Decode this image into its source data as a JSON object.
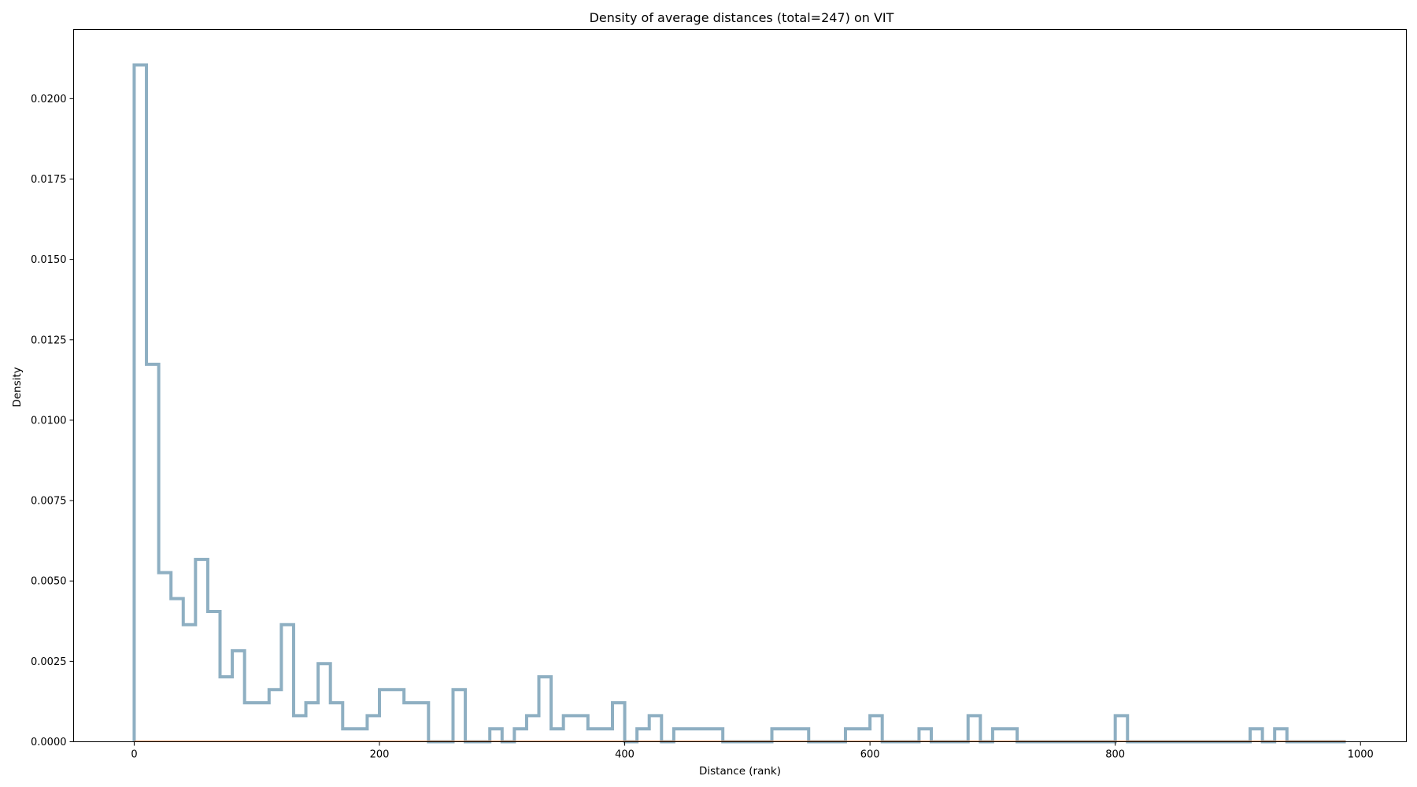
{
  "chart_data": {
    "type": "histogram-step",
    "title": "Density of average distances (total=247) on VIT",
    "xlabel": "Distance (rank)",
    "ylabel": "Density",
    "xlim": [
      -49.4,
      1037.4
    ],
    "ylim": [
      0,
      0.02215
    ],
    "xticks": [
      0,
      200,
      400,
      600,
      800,
      1000
    ],
    "xtick_labels": [
      "0",
      "200",
      "400",
      "600",
      "800",
      "1000"
    ],
    "yticks": [
      0,
      0.0025,
      0.005,
      0.0075,
      0.01,
      0.0125,
      0.015,
      0.0175,
      0.02
    ],
    "ytick_labels": [
      "0.0000",
      "0.0025",
      "0.0050",
      "0.0075",
      "0.0100",
      "0.0125",
      "0.0150",
      "0.0175",
      "0.0200"
    ],
    "grid": false,
    "series": [
      {
        "color": "#8eafc2",
        "bin_edges": [
          0,
          10,
          20,
          30,
          40,
          50,
          60,
          70,
          80,
          90,
          100,
          110,
          120,
          130,
          140,
          150,
          160,
          170,
          180,
          190,
          200,
          210,
          220,
          230,
          240,
          250,
          260,
          270,
          280,
          290,
          300,
          310,
          320,
          330,
          340,
          350,
          360,
          370,
          380,
          390,
          400,
          410,
          420,
          430,
          440,
          450,
          460,
          470,
          480,
          490,
          500,
          510,
          520,
          530,
          540,
          550,
          560,
          570,
          580,
          590,
          600,
          610,
          620,
          630,
          640,
          650,
          660,
          670,
          680,
          690,
          700,
          710,
          720,
          730,
          740,
          750,
          760,
          770,
          780,
          790,
          800,
          810,
          820,
          830,
          840,
          850,
          860,
          870,
          880,
          890,
          900,
          910,
          920,
          930,
          940,
          950,
          960,
          970,
          980,
          988
        ],
        "values": [
          0.02105,
          0.01174,
          0.00526,
          0.00445,
          0.00364,
          0.00567,
          0.00405,
          0.00202,
          0.00283,
          0.00121,
          0.00121,
          0.00162,
          0.00364,
          0.00081,
          0.00121,
          0.00243,
          0.00121,
          0.0004,
          0.0004,
          0.00081,
          0.00162,
          0.00162,
          0.00121,
          0.00121,
          0,
          0,
          0.00162,
          0,
          0,
          0.0004,
          0,
          0.0004,
          0.00081,
          0.00202,
          0.0004,
          0.00081,
          0.00081,
          0.0004,
          0.0004,
          0.00121,
          0,
          0.0004,
          0.00081,
          0,
          0.0004,
          0.0004,
          0.0004,
          0.0004,
          0,
          0,
          0,
          0,
          0.0004,
          0.0004,
          0.0004,
          0,
          0,
          0,
          0.0004,
          0.0004,
          0.00081,
          0,
          0,
          0,
          0.0004,
          0,
          0,
          0,
          0.00081,
          0,
          0.0004,
          0.0004,
          0,
          0,
          0,
          0,
          0,
          0,
          0,
          0,
          0.00081,
          0,
          0,
          0,
          0,
          0,
          0,
          0,
          0,
          0,
          0,
          0.0004,
          0,
          0.0004,
          0,
          0,
          0,
          0,
          0
        ]
      }
    ],
    "baseline_line": {
      "color": "#e07b39",
      "x": [
        0,
        988
      ],
      "y": [
        0,
        0
      ]
    }
  }
}
